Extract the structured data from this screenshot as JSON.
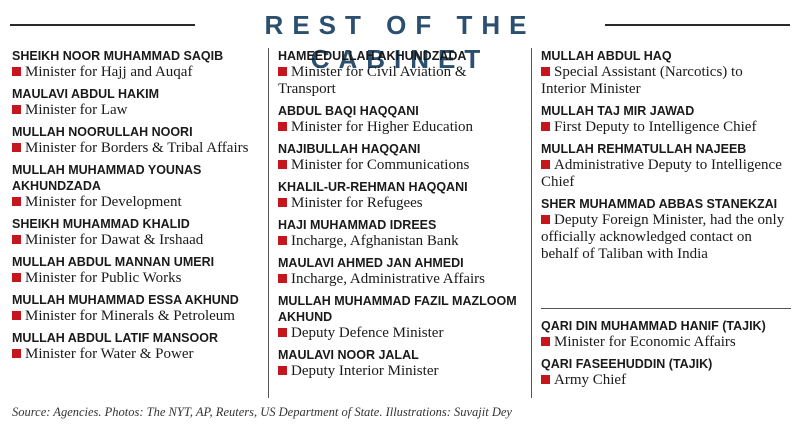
{
  "title": "REST OF THE CABINET",
  "columns": [
    [
      {
        "name": "SHEIKH NOOR MUHAMMAD SAQIB",
        "role": "Minister for Hajj and Auqaf"
      },
      {
        "name": "MAULAVI ABDUL HAKIM",
        "role": "Minister for Law"
      },
      {
        "name": "MULLAH NOORULLAH NOORI",
        "role": "Minister for Borders & Tribal Affairs"
      },
      {
        "name": "MULLAH MUHAMMAD YOUNAS AKHUNDZADA",
        "role": "Minister for Development"
      },
      {
        "name": "SHEIKH MUHAMMAD KHALID",
        "role": "Minister for Dawat & Irshaad"
      },
      {
        "name": "MULLAH ABDUL MANNAN UMERI",
        "role": "Minister for Public Works"
      },
      {
        "name": "MULLAH MUHAMMAD ESSA AKHUND",
        "role": "Minister for Minerals & Petroleum"
      },
      {
        "name": "MULLAH ABDUL LATIF MANSOOR",
        "role": "Minister for Water & Power"
      }
    ],
    [
      {
        "name": "HAMEEDULLAH AKHUNDZADA",
        "role": "Minister for Civil Aviation & Transport"
      },
      {
        "name": "ABDUL BAQI HAQQANI",
        "role": "Minister for Higher Education"
      },
      {
        "name": "NAJIBULLAH HAQQANI",
        "role": "Minister for Communications"
      },
      {
        "name": "KHALIL-UR-REHMAN HAQQANI",
        "role": "Minister for Refugees"
      },
      {
        "name": "HAJI MUHAMMAD IDREES",
        "role": "Incharge, Afghanistan Bank"
      },
      {
        "name": "MAULAVI AHMED JAN AHMEDI",
        "role": "Incharge, Administrative Affairs"
      },
      {
        "name": "MULLAH MUHAMMAD FAZIL MAZLOOM AKHUND",
        "role": "Deputy Defence Minister"
      },
      {
        "name": "MAULAVI NOOR JALAL",
        "role": "Deputy Interior Minister"
      }
    ],
    [
      {
        "name": "MULLAH ABDUL HAQ",
        "role": "Special Assistant (Narcotics) to Interior Minister"
      },
      {
        "name": "MULLAH TAJ MIR JAWAD",
        "role": "First Deputy to Intelligence Chief"
      },
      {
        "name": "MULLAH REHMATULLAH NAJEEB",
        "role": "Administrative Deputy to Intelligence Chief"
      },
      {
        "name": "SHER MUHAMMAD ABBAS STANEKZAI",
        "role": "Deputy Foreign Minister, had the only officially acknowledged contact on behalf of Taliban with India"
      }
    ]
  ],
  "tajik": [
    {
      "name": "QARI DIN MUHAMMAD HANIF (TAJIK)",
      "role": "Minister for Economic Affairs"
    },
    {
      "name": "QARI FASEEHUDDIN (TAJIK)",
      "role": "Army Chief"
    }
  ],
  "source": "Source: Agencies. Photos: The NYT, AP, Reuters, US Department of State. Illustrations: Suvajit Dey",
  "colors": {
    "title": "#2b4f6e",
    "bullet": "#c4161c"
  }
}
